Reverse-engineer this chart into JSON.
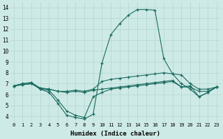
{
  "xlabel": "Humidex (Indice chaleur)",
  "xlim": [
    -0.5,
    23.5
  ],
  "ylim": [
    3.5,
    14.5
  ],
  "xticks": [
    0,
    1,
    2,
    3,
    4,
    5,
    6,
    7,
    8,
    9,
    10,
    11,
    12,
    13,
    14,
    15,
    16,
    17,
    18,
    19,
    20,
    21,
    22,
    23
  ],
  "yticks": [
    4,
    5,
    6,
    7,
    8,
    9,
    10,
    11,
    12,
    13,
    14
  ],
  "background_color": "#ceeae6",
  "grid_color": "#b8d8d4",
  "line_color": "#1a6b60",
  "lines": [
    {
      "x": [
        0,
        1,
        2,
        3,
        4,
        5,
        6,
        7,
        8,
        9,
        10,
        11,
        12,
        13,
        14,
        15,
        16,
        17,
        18,
        19,
        20,
        21,
        22,
        23
      ],
      "y": [
        6.8,
        7.0,
        7.1,
        6.5,
        6.2,
        5.2,
        4.1,
        3.9,
        3.75,
        4.2,
        8.9,
        11.5,
        12.5,
        13.3,
        13.8,
        13.8,
        13.75,
        9.3,
        7.9,
        7.0,
        6.5,
        5.8,
        6.2,
        6.7
      ]
    },
    {
      "x": [
        0,
        1,
        2,
        3,
        4,
        5,
        6,
        7,
        8,
        9,
        10,
        11,
        12,
        13,
        14,
        15,
        16,
        17,
        18,
        19,
        20,
        21,
        22,
        23
      ],
      "y": [
        6.8,
        7.0,
        7.1,
        6.6,
        6.5,
        6.3,
        6.3,
        6.4,
        6.3,
        6.5,
        7.2,
        7.4,
        7.5,
        7.6,
        7.7,
        7.8,
        7.9,
        8.0,
        7.9,
        7.8,
        7.0,
        6.5,
        6.5,
        6.7
      ]
    },
    {
      "x": [
        0,
        1,
        2,
        3,
        4,
        5,
        6,
        7,
        8,
        9,
        10,
        11,
        12,
        13,
        14,
        15,
        16,
        17,
        18,
        19,
        20,
        21,
        22,
        23
      ],
      "y": [
        6.8,
        6.9,
        7.0,
        6.6,
        6.5,
        6.3,
        6.2,
        6.3,
        6.2,
        6.4,
        6.5,
        6.6,
        6.7,
        6.8,
        6.9,
        7.0,
        7.1,
        7.2,
        7.3,
        6.7,
        6.7,
        6.3,
        6.3,
        6.7
      ]
    },
    {
      "x": [
        0,
        1,
        2,
        3,
        4,
        5,
        6,
        7,
        8,
        9,
        10,
        11,
        12,
        13,
        14,
        15,
        16,
        17,
        18,
        19,
        20,
        21,
        22,
        23
      ],
      "y": [
        6.8,
        6.9,
        7.0,
        6.5,
        6.4,
        5.5,
        4.5,
        4.1,
        3.9,
        5.8,
        6.2,
        6.5,
        6.6,
        6.7,
        6.8,
        6.9,
        7.0,
        7.1,
        7.2,
        6.7,
        6.8,
        5.8,
        6.2,
        6.7
      ]
    }
  ]
}
